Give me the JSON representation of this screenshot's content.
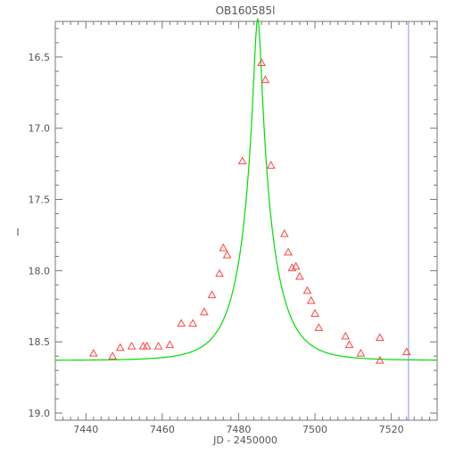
{
  "chart_data": {
    "type": "scatter",
    "title": "OB160585l",
    "xlabel": "JD - 2450000",
    "ylabel": "I",
    "xlim": [
      7432,
      7532
    ],
    "ylim": [
      19.05,
      16.25
    ],
    "y_inverted": true,
    "x_ticks": [
      7440,
      7460,
      7480,
      7500,
      7520
    ],
    "x_tick_labels": [
      "7440",
      "7460",
      "7480",
      "7500",
      "7520"
    ],
    "y_ticks": [
      16.5,
      17.0,
      17.5,
      18.0,
      18.5,
      19.0
    ],
    "y_tick_labels": [
      "16.5",
      "17.0",
      "17.5",
      "18.0",
      "18.5",
      "19.0"
    ],
    "grid": false,
    "legend": "none",
    "vertical_line_x": 7524.5,
    "series": [
      {
        "marker": "triangle-open",
        "color": "#ff4444",
        "points": [
          [
            7442,
            18.58
          ],
          [
            7447,
            18.6
          ],
          [
            7449,
            18.54
          ],
          [
            7452,
            18.53
          ],
          [
            7455,
            18.53
          ],
          [
            7456,
            18.53
          ],
          [
            7459,
            18.53
          ],
          [
            7462,
            18.52
          ],
          [
            7465,
            18.37
          ],
          [
            7468,
            18.37
          ],
          [
            7471,
            18.29
          ],
          [
            7473,
            18.17
          ],
          [
            7475,
            18.02
          ],
          [
            7476,
            17.84
          ],
          [
            7477,
            17.89
          ],
          [
            7481,
            17.23
          ],
          [
            7486,
            16.54
          ],
          [
            7487,
            16.66
          ],
          [
            7488.5,
            17.26
          ],
          [
            7492,
            17.74
          ],
          [
            7493,
            17.87
          ],
          [
            7494,
            17.98
          ],
          [
            7495,
            17.97
          ],
          [
            7496,
            18.04
          ],
          [
            7498,
            18.14
          ],
          [
            7499,
            18.21
          ],
          [
            7500,
            18.3
          ],
          [
            7501,
            18.4
          ],
          [
            7508,
            18.46
          ],
          [
            7509,
            18.52
          ],
          [
            7512,
            18.58
          ],
          [
            7517,
            18.47
          ],
          [
            7517,
            18.63
          ],
          [
            7524,
            18.57
          ]
        ]
      },
      {
        "type": "line",
        "color": "#00dd00",
        "model": {
          "t0": 7485,
          "baseline_mag": 18.63,
          "u0": 0.11,
          "tE": 8.5
        }
      }
    ]
  }
}
